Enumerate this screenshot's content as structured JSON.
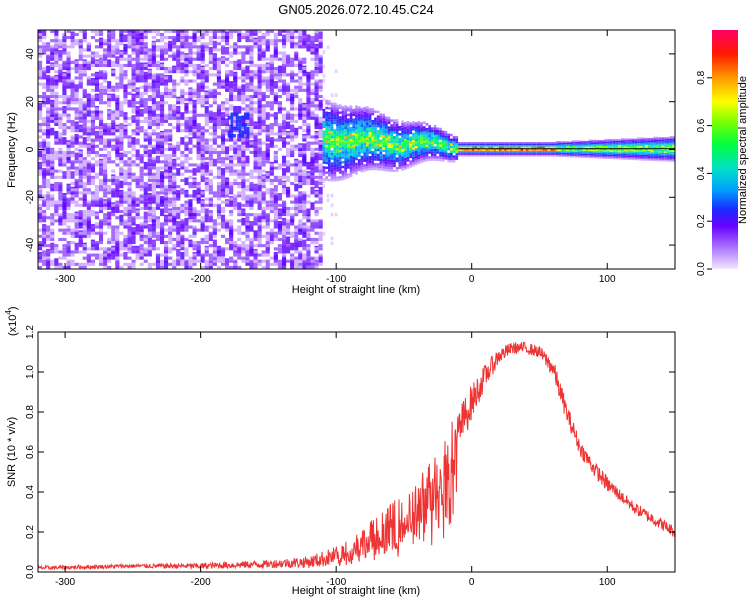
{
  "title": "GN05.2026.072.10.45.C24",
  "chart_data": [
    {
      "type": "heatmap",
      "xlabel": "Height of straight line (km)",
      "ylabel": "Frequency (Hz)",
      "xlim": [
        -320,
        150
      ],
      "ylim": [
        -50,
        50
      ],
      "xticks": [
        -300,
        -200,
        -100,
        0,
        100
      ],
      "yticks": [
        40,
        20,
        0,
        -20,
        -40
      ],
      "colorbar": {
        "label": "Normalized spectral amplitude",
        "range": [
          0,
          1
        ],
        "ticks": [
          "0.0",
          "0.2",
          "0.4",
          "0.6",
          "0.8"
        ],
        "tick_values": [
          0.0,
          0.2,
          0.4,
          0.6,
          0.8
        ]
      },
      "regions": [
        {
          "name": "noise",
          "x": [
            -320,
            -110
          ],
          "freq": [
            -50,
            50
          ],
          "amplitude": 0.15
        },
        {
          "name": "patch",
          "x": [
            -180,
            -165
          ],
          "freq": [
            5,
            15
          ],
          "amplitude": 0.25
        },
        {
          "name": "transition",
          "x": [
            -110,
            -10
          ],
          "freq_center": 4,
          "amplitude": 0.45
        },
        {
          "name": "carrier",
          "x": [
            -10,
            150
          ],
          "freq_center": 0,
          "amplitude": 0.9
        }
      ]
    },
    {
      "type": "line",
      "xlabel": "Height of straight line (km)",
      "ylabel": "SNR (10 * v/v)",
      "scale_label": "(x10",
      "scale_exponent": "4",
      "scale_suffix": ")",
      "xlim": [
        -320,
        150
      ],
      "ylim": [
        0,
        1.2
      ],
      "xticks": [
        -300,
        -200,
        -100,
        0,
        100
      ],
      "yticks": [
        "0.0",
        "0.2",
        "0.4",
        "0.6",
        "0.8",
        "1.0",
        "1.2"
      ],
      "ytick_values": [
        0.0,
        0.2,
        0.4,
        0.6,
        0.8,
        1.0,
        1.2
      ],
      "series": [
        {
          "name": "SNR",
          "color": "#ee3333",
          "x": [
            -320,
            -250,
            -200,
            -150,
            -120,
            -100,
            -80,
            -60,
            -40,
            -30,
            -20,
            -10,
            0,
            10,
            20,
            30,
            40,
            50,
            60,
            70,
            80,
            90,
            100,
            110,
            120,
            130,
            140,
            150
          ],
          "values": [
            0.02,
            0.03,
            0.03,
            0.04,
            0.05,
            0.08,
            0.15,
            0.22,
            0.32,
            0.42,
            0.55,
            0.7,
            0.85,
            0.98,
            1.08,
            1.12,
            1.12,
            1.1,
            1.02,
            0.8,
            0.62,
            0.52,
            0.44,
            0.38,
            0.32,
            0.28,
            0.24,
            0.2
          ],
          "noise": [
            0.01,
            0.01,
            0.015,
            0.02,
            0.03,
            0.05,
            0.08,
            0.12,
            0.14,
            0.16,
            0.15,
            0.12,
            0.09,
            0.06,
            0.04,
            0.03,
            0.03,
            0.03,
            0.05,
            0.05,
            0.04,
            0.04,
            0.04,
            0.03,
            0.03,
            0.03,
            0.03,
            0.03
          ]
        }
      ]
    }
  ]
}
